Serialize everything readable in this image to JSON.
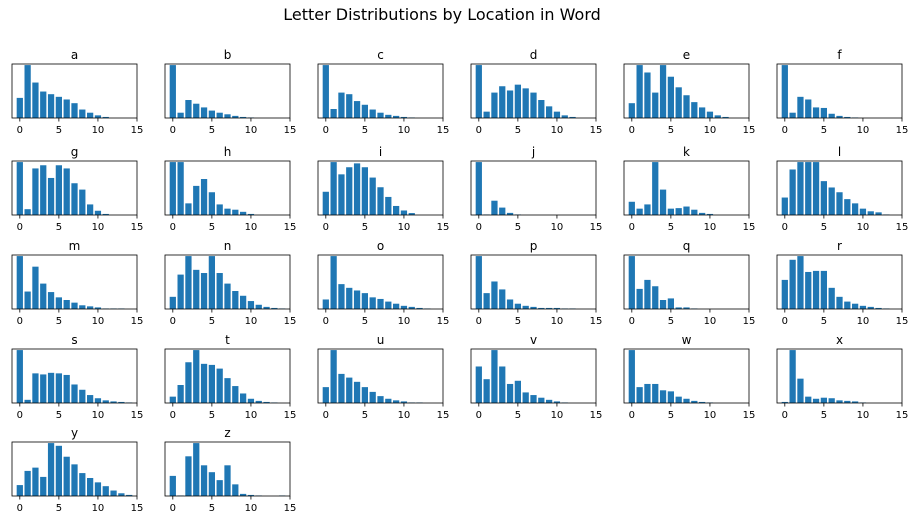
{
  "figure": {
    "title": "Letter Distributions by Location in Word"
  },
  "colors": {
    "bar": "#1f77b4",
    "axes": "#000000",
    "background": "#ffffff"
  },
  "chart_data": {
    "type": "bar",
    "title": "Letter Distributions by Location in Word",
    "x": [
      0,
      1,
      2,
      3,
      4,
      5,
      6,
      7,
      8,
      9,
      10,
      11,
      12,
      13,
      14
    ],
    "xlim": [
      -1,
      15
    ],
    "xticks": [
      0,
      5,
      10,
      15
    ],
    "ylabel_shown": false,
    "yticks_shown": false,
    "grid": false,
    "panels": [
      {
        "title": "a",
        "values": [
          0.38,
          1.0,
          0.67,
          0.5,
          0.45,
          0.4,
          0.35,
          0.28,
          0.16,
          0.1,
          0.05,
          0.02,
          0,
          0,
          0
        ]
      },
      {
        "title": "b",
        "values": [
          1.0,
          0.1,
          0.34,
          0.27,
          0.2,
          0.14,
          0.1,
          0.07,
          0.04,
          0.02,
          0.01,
          0,
          0,
          0,
          0
        ]
      },
      {
        "title": "c",
        "values": [
          1.0,
          0.17,
          0.48,
          0.45,
          0.32,
          0.25,
          0.16,
          0.1,
          0.06,
          0.04,
          0.02,
          0.01,
          0,
          0,
          0
        ]
      },
      {
        "title": "d",
        "values": [
          1.0,
          0.12,
          0.48,
          0.6,
          0.52,
          0.63,
          0.56,
          0.48,
          0.34,
          0.22,
          0.12,
          0.05,
          0.02,
          0,
          0
        ]
      },
      {
        "title": "e",
        "values": [
          0.28,
          1.0,
          0.86,
          0.48,
          1.0,
          0.78,
          0.58,
          0.43,
          0.3,
          0.2,
          0.12,
          0.05,
          0.02,
          0,
          0
        ]
      },
      {
        "title": "f",
        "values": [
          1.0,
          0.1,
          0.4,
          0.35,
          0.2,
          0.19,
          0.08,
          0.04,
          0.02,
          0.01,
          0,
          0,
          0,
          0,
          0
        ]
      },
      {
        "title": "g",
        "values": [
          1.0,
          0.11,
          0.88,
          0.94,
          0.7,
          0.94,
          0.88,
          0.6,
          0.48,
          0.2,
          0.08,
          0.02,
          0,
          0,
          0
        ]
      },
      {
        "title": "h",
        "values": [
          1.0,
          1.0,
          0.22,
          0.55,
          0.68,
          0.43,
          0.2,
          0.12,
          0.1,
          0.06,
          0.02,
          0,
          0,
          0,
          0
        ]
      },
      {
        "title": "i",
        "values": [
          0.36,
          0.82,
          0.63,
          0.74,
          0.8,
          0.74,
          0.58,
          0.43,
          0.28,
          0.14,
          0.07,
          0.03,
          0,
          0,
          0
        ]
      },
      {
        "title": "j",
        "values": [
          1.0,
          0.01,
          0.27,
          0.14,
          0.04,
          0.01,
          0,
          0,
          0,
          0,
          0,
          0,
          0,
          0,
          0
        ]
      },
      {
        "title": "k",
        "values": [
          0.25,
          0.12,
          0.2,
          1.0,
          0.48,
          0.12,
          0.13,
          0.16,
          0.1,
          0.04,
          0.02,
          0,
          0,
          0,
          0
        ]
      },
      {
        "title": "l",
        "values": [
          0.33,
          0.86,
          1.0,
          1.0,
          1.0,
          0.64,
          0.52,
          0.43,
          0.3,
          0.22,
          0.12,
          0.07,
          0.05,
          0.01,
          0
        ]
      },
      {
        "title": "m",
        "values": [
          1.0,
          0.33,
          0.8,
          0.48,
          0.32,
          0.22,
          0.17,
          0.12,
          0.07,
          0.05,
          0.03,
          0.01,
          0.01,
          0.01,
          0
        ]
      },
      {
        "title": "n",
        "values": [
          0.23,
          0.65,
          1.0,
          0.74,
          0.68,
          1.0,
          0.68,
          0.48,
          0.34,
          0.25,
          0.15,
          0.08,
          0.04,
          0.02,
          0.01
        ]
      },
      {
        "title": "o",
        "values": [
          0.18,
          1.0,
          0.47,
          0.4,
          0.35,
          0.3,
          0.22,
          0.19,
          0.14,
          0.1,
          0.06,
          0.04,
          0.02,
          0.01,
          0
        ]
      },
      {
        "title": "p",
        "values": [
          1.0,
          0.3,
          0.52,
          0.37,
          0.18,
          0.1,
          0.06,
          0.04,
          0.02,
          0.02,
          0.02,
          0.01,
          0.01,
          0,
          0
        ]
      },
      {
        "title": "q",
        "values": [
          1.0,
          0.38,
          0.55,
          0.43,
          0.17,
          0.2,
          0.03,
          0.03,
          0.01,
          0,
          0,
          0,
          0,
          0,
          0
        ]
      },
      {
        "title": "r",
        "values": [
          0.55,
          0.93,
          1.0,
          0.7,
          0.72,
          0.72,
          0.4,
          0.23,
          0.14,
          0.1,
          0.06,
          0.04,
          0.02,
          0.01,
          0
        ]
      },
      {
        "title": "s",
        "values": [
          1.0,
          0.06,
          0.56,
          0.54,
          0.57,
          0.56,
          0.53,
          0.35,
          0.25,
          0.15,
          0.09,
          0.05,
          0.03,
          0.02,
          0.01
        ]
      },
      {
        "title": "t",
        "values": [
          0.12,
          0.34,
          0.77,
          1.0,
          0.74,
          0.72,
          0.65,
          0.47,
          0.32,
          0.18,
          0.08,
          0.04,
          0.02,
          0.01,
          0
        ]
      },
      {
        "title": "u",
        "values": [
          0.3,
          1.0,
          0.55,
          0.48,
          0.4,
          0.3,
          0.21,
          0.13,
          0.08,
          0.05,
          0.03,
          0.01,
          0.01,
          0,
          0
        ]
      },
      {
        "title": "v",
        "values": [
          0.69,
          0.45,
          1.0,
          0.69,
          0.36,
          0.42,
          0.2,
          0.15,
          0.1,
          0.06,
          0.03,
          0.01,
          0,
          0,
          0
        ]
      },
      {
        "title": "w",
        "values": [
          1.0,
          0.3,
          0.36,
          0.36,
          0.24,
          0.22,
          0.12,
          0.08,
          0.04,
          0.02,
          0.01,
          0,
          0,
          0,
          0
        ]
      },
      {
        "title": "x",
        "values": [
          0.02,
          1.0,
          0.46,
          0.12,
          0.08,
          0.1,
          0.09,
          0.05,
          0.04,
          0.03,
          0.01,
          0,
          0,
          0,
          0
        ]
      },
      {
        "title": "y",
        "values": [
          0.2,
          0.46,
          0.52,
          0.35,
          0.97,
          0.92,
          0.72,
          0.58,
          0.42,
          0.33,
          0.25,
          0.18,
          0.1,
          0.05,
          0.02
        ]
      },
      {
        "title": "z",
        "values": [
          0.38,
          0.01,
          0.75,
          1.0,
          0.58,
          0.45,
          0.3,
          0.58,
          0.22,
          0.04,
          0.02,
          0.01,
          0,
          0,
          0.01
        ]
      }
    ]
  }
}
